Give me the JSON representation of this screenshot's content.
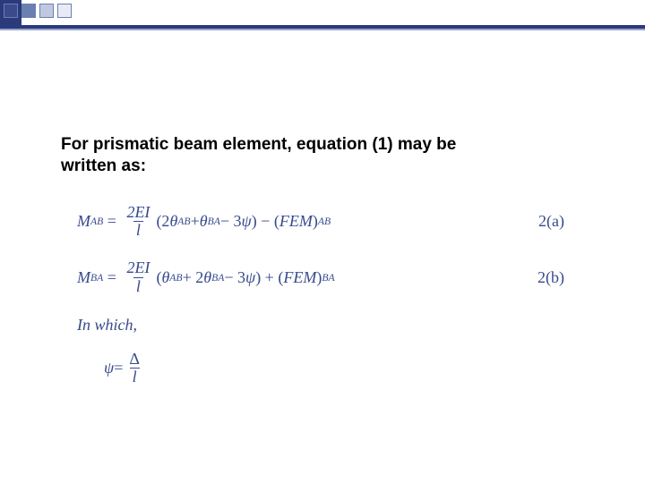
{
  "colors": {
    "navy": "#2b3a7a",
    "eq_color": "#374a8c",
    "text": "#000000",
    "bg": "#ffffff"
  },
  "heading": {
    "line1": "For prismatic beam element, equation (1) may be",
    "line2": "written as:"
  },
  "equations": {
    "eq_a": {
      "lhs_var": "M",
      "lhs_sub": "AB",
      "frac_num": "2EI",
      "frac_den": "l",
      "paren_open": "(2",
      "theta1": "θ",
      "theta1_sub": "AB",
      "plus1": " + ",
      "theta2": "θ",
      "theta2_sub": "BA",
      "minus": " − 3",
      "psi": "ψ",
      "paren_close": ") − (",
      "fem": "FEM",
      "fem_after": ")",
      "fem_sub": "AB",
      "tag": "2(a)"
    },
    "eq_b": {
      "lhs_var": "M",
      "lhs_sub": "BA",
      "frac_num": "2EI",
      "frac_den": "l",
      "paren_open": "(",
      "theta1": "θ",
      "theta1_sub": "AB",
      "plus1": " + 2",
      "theta2": "θ",
      "theta2_sub": "BA",
      "minus": " − 3",
      "psi": "ψ",
      "paren_close": ") + (",
      "fem": "FEM",
      "fem_after": ")",
      "fem_sub": "BA",
      "tag": "2(b)"
    },
    "in_which": "In which,",
    "psi_def": {
      "psi": "ψ",
      "equals": " = ",
      "num": "Δ",
      "den": "l"
    }
  }
}
